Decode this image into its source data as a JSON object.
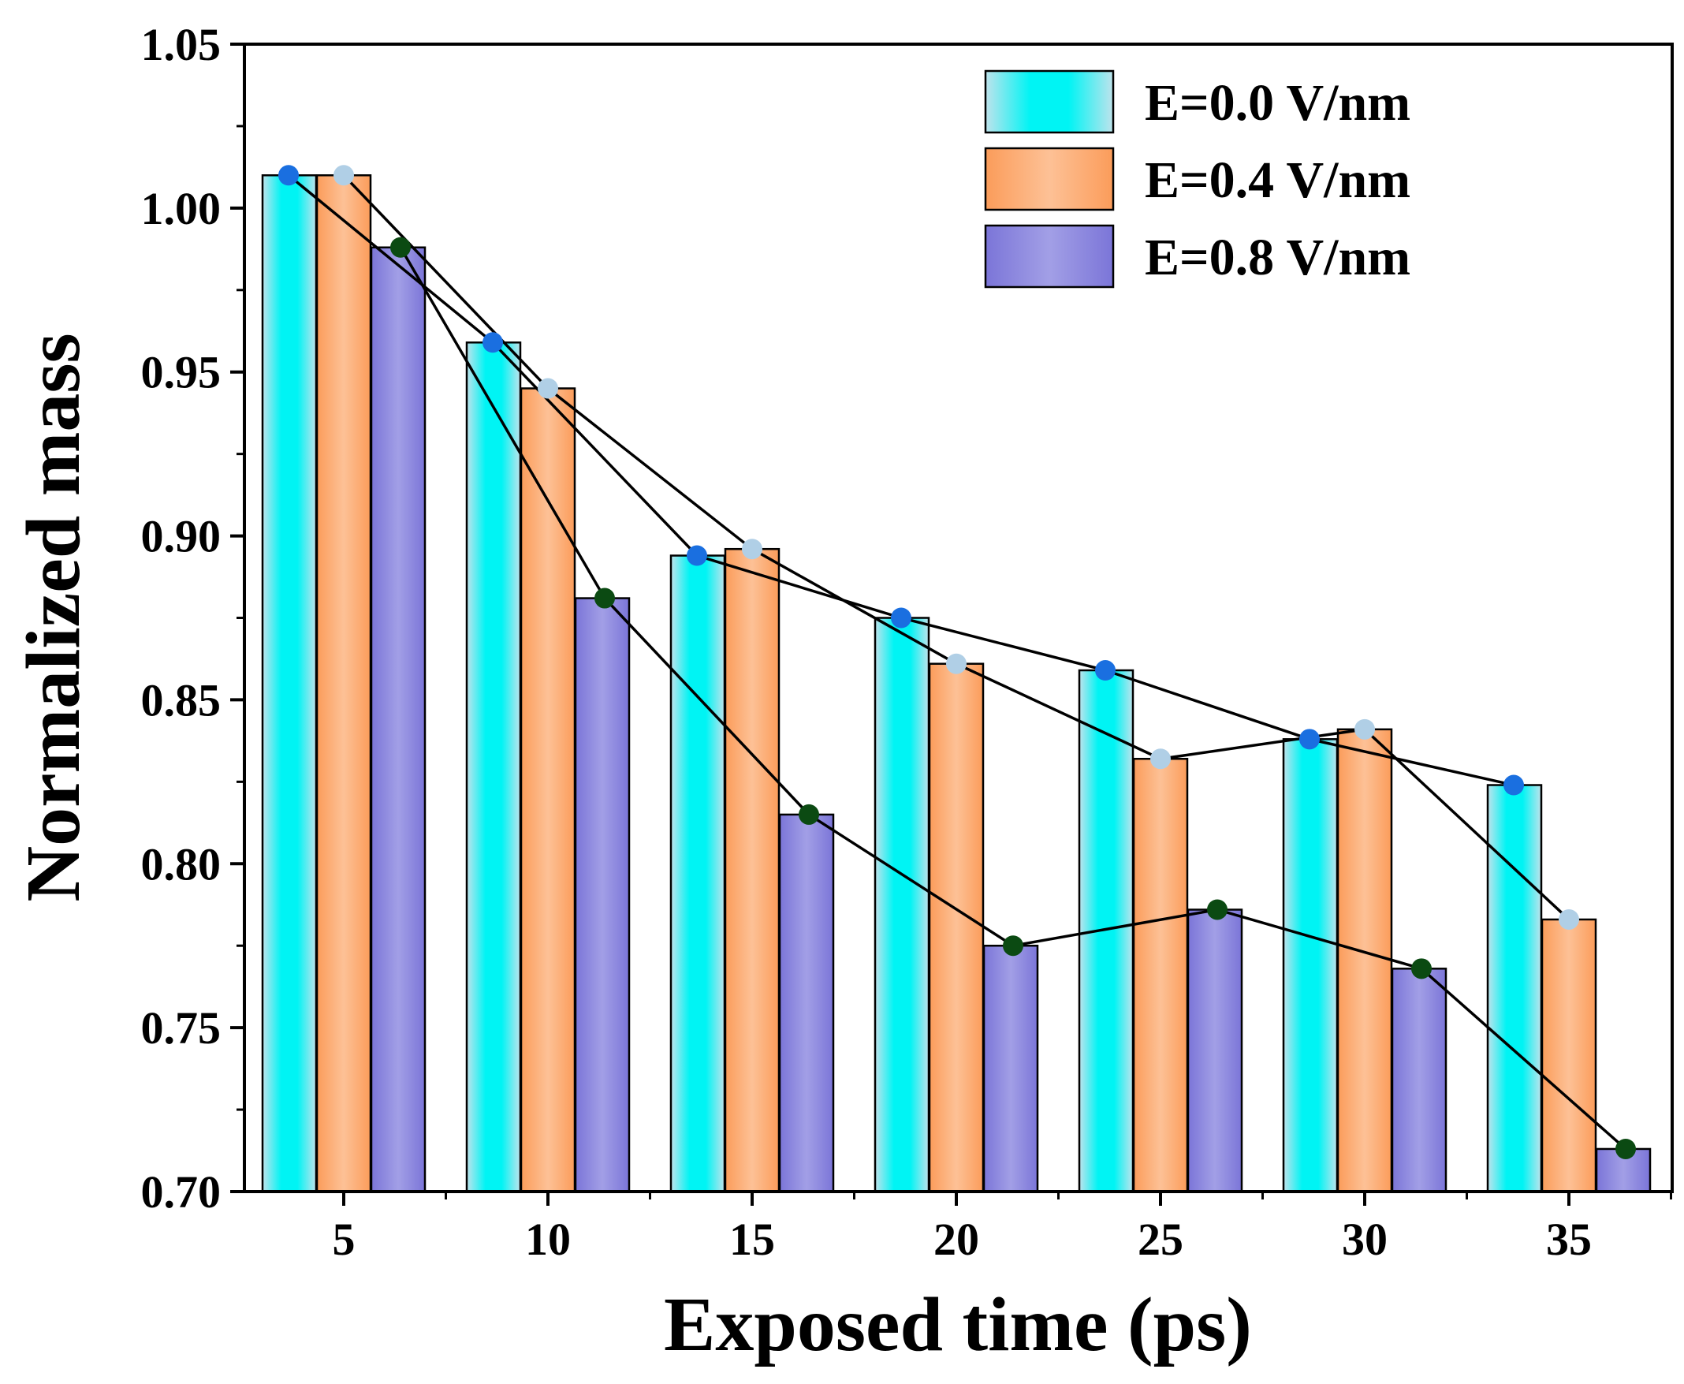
{
  "chart_data": {
    "type": "bar",
    "title": "",
    "xlabel": "Exposed time (ps)",
    "ylabel": "Normalized mass",
    "ylim": [
      0.7,
      1.05
    ],
    "yticks": [
      "0.70",
      "0.75",
      "0.80",
      "0.85",
      "0.90",
      "0.95",
      "1.00",
      "1.05"
    ],
    "categories": [
      "5",
      "10",
      "15",
      "20",
      "25",
      "30",
      "35"
    ],
    "series": [
      {
        "name": "E=0.0 V/nm",
        "values": [
          1.01,
          0.959,
          0.894,
          0.875,
          0.859,
          0.838,
          0.824
        ],
        "color": "#00f0f0",
        "marker_color": "#1a6fe0"
      },
      {
        "name": "E=0.4 V/nm",
        "values": [
          1.01,
          0.945,
          0.896,
          0.861,
          0.832,
          0.841,
          0.783
        ],
        "color": "#fca86a",
        "marker_color": "#b0cfe6"
      },
      {
        "name": "E=0.8 V/nm",
        "values": [
          0.988,
          0.881,
          0.815,
          0.775,
          0.786,
          0.768,
          0.713
        ],
        "color": "#8a84de",
        "marker_color": "#0b4a12"
      }
    ],
    "legend_position": "top-right",
    "grid": false
  }
}
